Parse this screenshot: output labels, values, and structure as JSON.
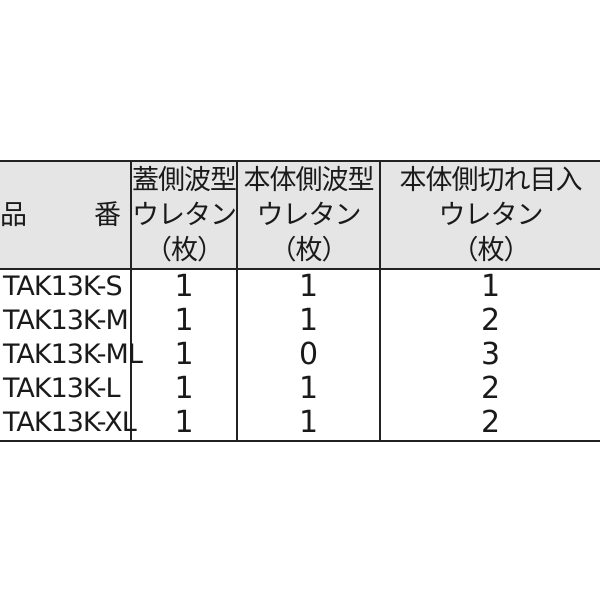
{
  "table": {
    "headers": [
      {
        "lines": [
          "品　番"
        ]
      },
      {
        "lines": [
          "蓋側波型",
          "ウレタン",
          "（枚）"
        ]
      },
      {
        "lines": [
          "本体側波型",
          "ウレタン",
          "（枚）"
        ]
      },
      {
        "lines": [
          "本体側切れ目入",
          "ウレタン",
          "（枚）"
        ]
      }
    ],
    "rows": [
      [
        "TAK13K-S",
        "1",
        "1",
        "1"
      ],
      [
        "TAK13K-M",
        "1",
        "1",
        "2"
      ],
      [
        "TAK13K-ML",
        "1",
        "0",
        "3"
      ],
      [
        "TAK13K-L",
        "1",
        "1",
        "2"
      ],
      [
        "TAK13K-XL",
        "1",
        "1",
        "2"
      ]
    ]
  }
}
